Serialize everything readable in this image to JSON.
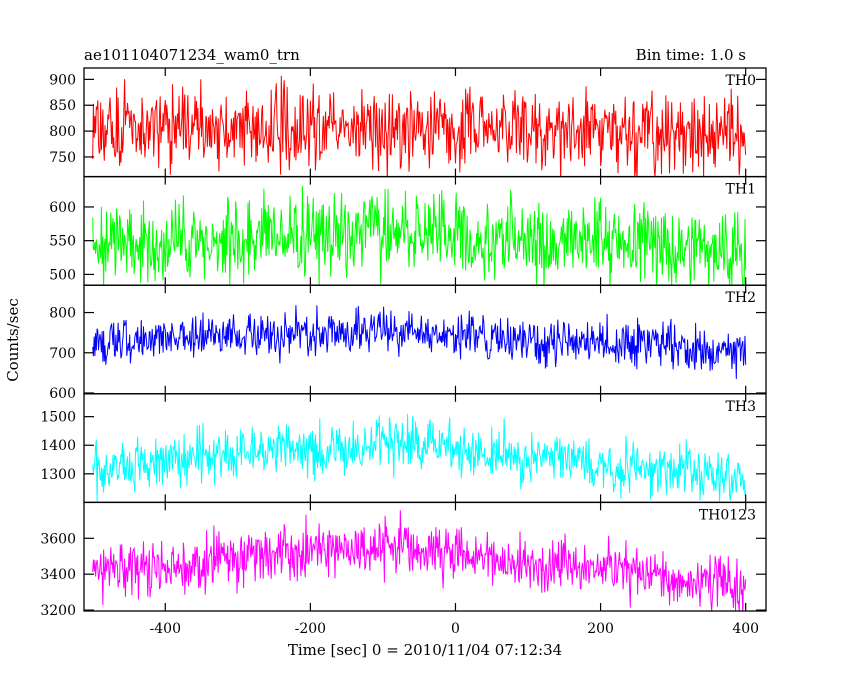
{
  "chart_data": {
    "type": "line",
    "title_left": "ae101104071234_wam0_trn",
    "title_right": "Bin time: 1.0 s",
    "xlabel": "Time [sec] 0 = 2010/11/04 07:12:34",
    "ylabel": "Counts/sec",
    "xlim": [
      -512,
      428
    ],
    "xticks": [
      -400,
      -200,
      0,
      200,
      400
    ],
    "x_start": -500,
    "x_end": 400,
    "bin": 1.0,
    "grid": false,
    "panels": [
      {
        "name": "TH0",
        "color": "#ff0000",
        "ylim": [
          712,
          922
        ],
        "yticks": [
          750,
          800,
          850,
          900
        ],
        "trend": [
          [
            -500,
            810
          ],
          [
            400,
            795
          ]
        ],
        "noise": 40
      },
      {
        "name": "TH1",
        "color": "#00ff00",
        "ylim": [
          484,
          645
        ],
        "yticks": [
          500,
          550,
          600
        ],
        "trend": [
          [
            -500,
            550
          ],
          [
            -100,
            560
          ],
          [
            400,
            540
          ]
        ],
        "noise": 30
      },
      {
        "name": "TH2",
        "color": "#0000ff",
        "ylim": [
          598,
          868
        ],
        "yticks": [
          600,
          700,
          800
        ],
        "trend": [
          [
            -500,
            725
          ],
          [
            -100,
            755
          ],
          [
            400,
            705
          ]
        ],
        "noise": 28
      },
      {
        "name": "TH3",
        "color": "#00ffff",
        "ylim": [
          1200,
          1580
        ],
        "yticks": [
          1300,
          1400,
          1500
        ],
        "trend": [
          [
            -500,
            1325
          ],
          [
            -100,
            1410
          ],
          [
            400,
            1280
          ]
        ],
        "noise": 45
      },
      {
        "name": "TH0123",
        "color": "#ff00ff",
        "ylim": [
          3195,
          3800
        ],
        "yticks": [
          3200,
          3400,
          3600
        ],
        "trend": [
          [
            -500,
            3420
          ],
          [
            -100,
            3560
          ],
          [
            400,
            3330
          ]
        ],
        "noise": 75
      }
    ]
  }
}
